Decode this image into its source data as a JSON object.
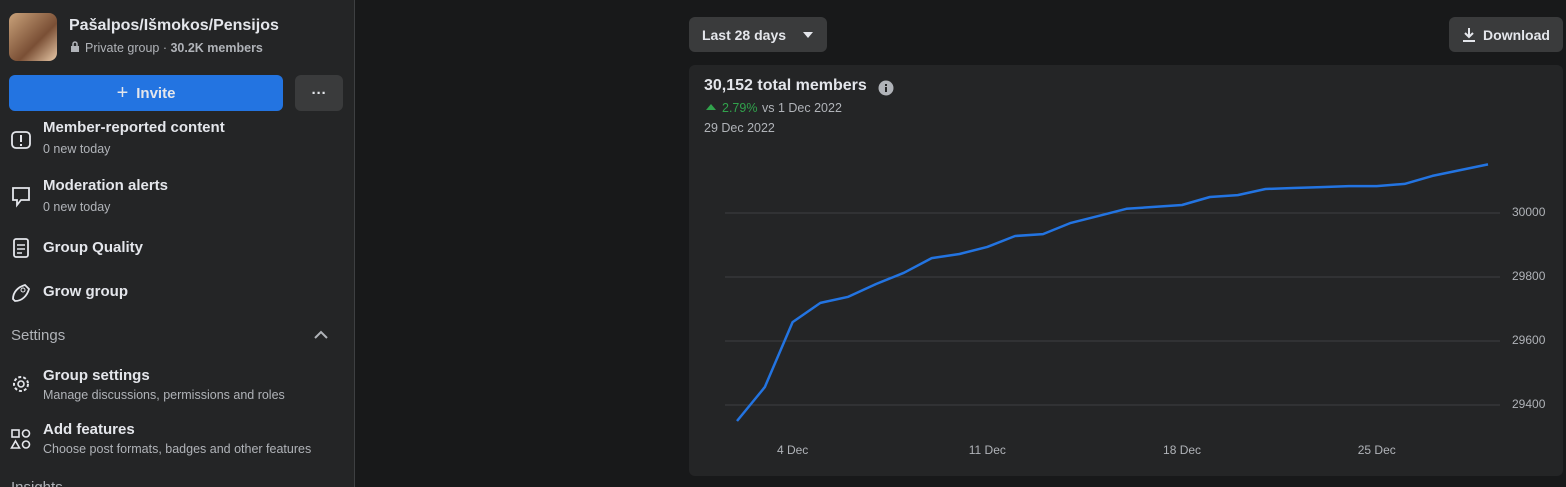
{
  "sidebar": {
    "group_name": "Pašalpos/Išmokos/Pensijos",
    "privacy": "Private group ·",
    "members": "30.2K members",
    "invite": "Invite",
    "more": "···",
    "items": [
      {
        "title": "Member-reported content",
        "subtitle": "0 new today"
      },
      {
        "title": "Moderation alerts",
        "subtitle": "0 new today"
      },
      {
        "title": "Group Quality"
      },
      {
        "title": "Grow group"
      }
    ],
    "settings_header": "Settings",
    "settings_items": [
      {
        "title": "Group settings",
        "subtitle": "Manage discussions, permissions and roles"
      },
      {
        "title": "Add features",
        "subtitle": "Choose post formats, badges and other features"
      }
    ],
    "insights_header": "Insights"
  },
  "toolbar": {
    "range": "Last 28 days",
    "download": "Download"
  },
  "chart_data": {
    "type": "line",
    "title": "30,152 total members",
    "change": "2.79%",
    "comparison": "vs 1 Dec 2022",
    "date": "29 Dec 2022",
    "categories": [
      null,
      null,
      "4 Dec",
      null,
      null,
      null,
      null,
      null,
      null,
      "11 Dec",
      null,
      null,
      null,
      null,
      null,
      null,
      "18 Dec",
      null,
      null,
      null,
      null,
      null,
      null,
      "25 Dec",
      null,
      null,
      null,
      null
    ],
    "values": [
      29350,
      29456,
      29659,
      29719,
      29738,
      29778,
      29813,
      29859,
      29872,
      29894,
      29928,
      29934,
      29969,
      29991,
      30013,
      30019,
      30025,
      30050,
      30056,
      30075,
      30078,
      30081,
      30084,
      30084,
      30091,
      30116,
      30134,
      30152
    ],
    "color": "#2374e1",
    "ylim": [
      29320,
      30200
    ],
    "yticks": [
      29400,
      29600,
      29800,
      30000
    ],
    "grid": true
  }
}
